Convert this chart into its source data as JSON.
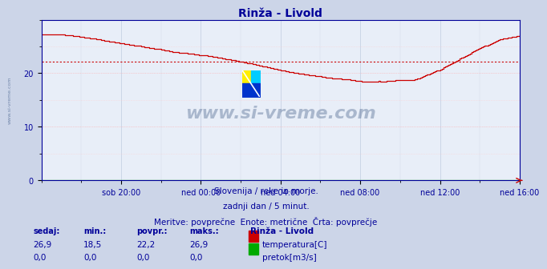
{
  "title": "Rinža - Livold",
  "title_color": "#000099",
  "bg_color": "#ccd5e8",
  "plot_bg_color": "#e8eef8",
  "x_labels": [
    "sob 20:00",
    "ned 00:00",
    "ned 04:00",
    "ned 08:00",
    "ned 12:00",
    "ned 16:00"
  ],
  "ylim": [
    0,
    30
  ],
  "yticks": [
    0,
    10,
    20
  ],
  "temp_avg": 22.2,
  "temp_color": "#cc0000",
  "flow_color": "#00aa00",
  "watermark": "www.si-vreme.com",
  "watermark_color": "#1a3a6a",
  "watermark_alpha": 0.3,
  "subtitle1": "Slovenija / reke in morje.",
  "subtitle2": "zadnji dan / 5 minut.",
  "subtitle3": "Meritve: povprečne  Enote: metrične  Črta: povprečje",
  "subtitle_color": "#000099",
  "legend_title": "Rinža - Livold",
  "legend_title_color": "#000099",
  "label_temp": "temperatura[C]",
  "label_flow": "pretok[m3/s]",
  "stats_headers": [
    "sedaj:",
    "min.:",
    "povpr.:",
    "maks.:"
  ],
  "stats_temp": [
    26.9,
    18.5,
    22.2,
    26.9
  ],
  "stats_flow": [
    0.0,
    0.0,
    0.0,
    0.0
  ],
  "stats_color": "#000099",
  "keypoints_t": [
    0.0,
    0.06,
    0.12,
    0.2,
    0.28,
    0.36,
    0.44,
    0.52,
    0.6,
    0.67,
    0.73,
    0.78,
    0.83,
    0.88,
    0.92,
    0.96,
    1.0
  ],
  "keypoints_v": [
    27.2,
    27.0,
    26.3,
    25.2,
    24.0,
    23.2,
    21.8,
    20.3,
    19.2,
    18.5,
    18.5,
    18.7,
    20.5,
    22.8,
    24.8,
    26.3,
    27.0
  ]
}
